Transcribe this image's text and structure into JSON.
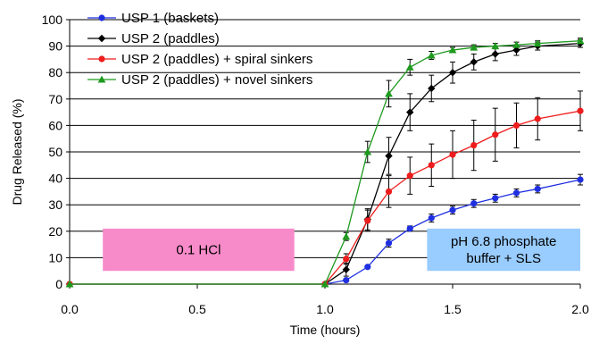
{
  "chart_data": {
    "type": "line",
    "title": "",
    "xlabel": "Time (hours)",
    "ylabel": "Drug Released (%)",
    "xlim": [
      0,
      2
    ],
    "ylim": [
      0,
      100
    ],
    "x_ticks": [
      "0.0",
      "0.5",
      "1.0",
      "1.5",
      "2.0"
    ],
    "y_ticks": [
      "0",
      "10",
      "20",
      "30",
      "40",
      "50",
      "60",
      "70",
      "80",
      "90",
      "100"
    ],
    "grid": "horizontal",
    "legend_position": "top-left",
    "x": [
      0,
      1,
      1.083,
      1.167,
      1.25,
      1.333,
      1.417,
      1.5,
      1.583,
      1.667,
      1.75,
      1.833,
      2
    ],
    "series": [
      {
        "name": "USP 1 (baskets)",
        "color": "#1f2fe0",
        "marker": "circle",
        "values": [
          0,
          0,
          1.5,
          6.5,
          15.5,
          21,
          25,
          28,
          30.5,
          32.5,
          34.5,
          36,
          39.5
        ],
        "errors": [
          0,
          0,
          0.5,
          0.5,
          1.5,
          1,
          1.5,
          1.5,
          1.5,
          1.5,
          1.5,
          1.5,
          2
        ]
      },
      {
        "name": "USP 2 (paddles)",
        "color": "#000000",
        "marker": "diamond",
        "values": [
          0,
          0,
          5.5,
          24.5,
          48.5,
          65,
          74,
          80,
          84,
          87,
          88.5,
          90,
          91
        ],
        "errors": [
          0,
          0,
          2.5,
          4,
          7,
          7,
          5,
          4,
          3,
          2.5,
          2,
          1.5,
          1.5
        ]
      },
      {
        "name": "USP 2 (paddles) + spiral sinkers",
        "color": "#ee1c1c",
        "marker": "circle",
        "values": [
          0,
          0,
          9.5,
          24,
          35,
          41,
          45,
          49,
          52.5,
          56.5,
          60,
          62.5,
          65.5
        ],
        "errors": [
          0,
          0,
          2,
          4,
          6,
          7,
          8,
          9,
          9.5,
          10,
          8.5,
          8,
          7.5
        ]
      },
      {
        "name": "USP 2 (paddles) + novel sinkers",
        "color": "#1f9a1f",
        "marker": "triangle",
        "values": [
          0,
          0,
          18,
          50,
          72,
          82,
          86.5,
          88.5,
          89.5,
          90,
          90.5,
          91,
          92
        ],
        "errors": [
          0,
          0,
          1.5,
          4,
          5,
          3,
          1.5,
          1,
          1,
          1,
          1,
          1,
          1
        ]
      }
    ],
    "annotations": [
      {
        "lines": [
          "0.1 HCl"
        ],
        "background": "#f78bc9",
        "x_range": [
          0.13,
          0.88
        ],
        "y_range": [
          5,
          21
        ]
      },
      {
        "lines": [
          "pH 6.8 phosphate",
          "buffer + SLS"
        ],
        "background": "#99ccff",
        "x_range": [
          1.4,
          2.0
        ],
        "y_range": [
          5,
          21
        ]
      }
    ]
  }
}
